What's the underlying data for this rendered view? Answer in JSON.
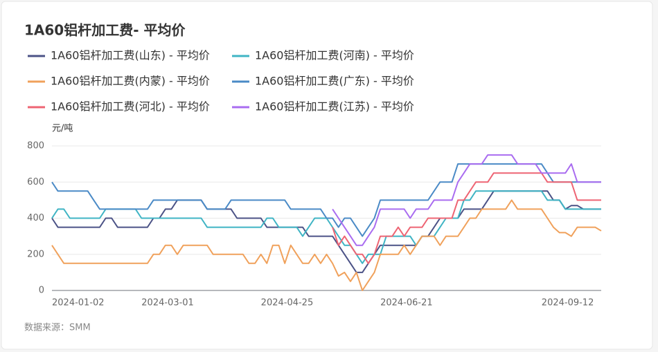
{
  "chart_data": {
    "type": "line",
    "title": "1A60铝杆加工费- 平均价",
    "y_axis_label": "元/吨",
    "source": "数据来源：SMM",
    "categories": [
      "2024-01-02",
      null,
      null,
      null,
      null,
      null,
      null,
      null,
      null,
      null,
      null,
      null,
      null,
      null,
      null,
      "2024-03-01",
      null,
      null,
      null,
      null,
      null,
      null,
      null,
      null,
      null,
      null,
      null,
      null,
      null,
      null,
      null,
      null,
      null,
      null,
      null,
      "2024-04-25",
      null,
      null,
      null,
      null,
      null,
      null,
      null,
      null,
      null,
      null,
      null,
      null,
      null,
      null,
      null,
      null,
      null,
      null,
      null,
      "2024-06-21",
      null,
      null,
      null,
      null,
      null,
      null,
      null,
      null,
      null,
      null,
      null,
      null,
      null,
      null,
      null,
      null,
      null,
      null,
      null,
      null,
      null,
      null,
      null,
      null,
      null,
      null,
      "2024-09-12",
      null,
      null,
      null,
      null,
      null,
      null,
      null,
      null,
      null,
      null
    ],
    "ylim": [
      0,
      800
    ],
    "yticks": [
      0,
      200,
      400,
      600,
      800
    ],
    "grid": true,
    "series": [
      {
        "name": "1A60铝杆加工费(山东) - 平均价",
        "color": "#4b5286",
        "values": [
          400,
          350,
          350,
          350,
          350,
          350,
          350,
          350,
          350,
          400,
          400,
          350,
          350,
          350,
          350,
          350,
          350,
          400,
          400,
          450,
          450,
          500,
          500,
          500,
          500,
          500,
          450,
          450,
          450,
          450,
          450,
          400,
          400,
          400,
          400,
          400,
          350,
          350,
          350,
          350,
          350,
          350,
          350,
          300,
          300,
          300,
          300,
          300,
          250,
          200,
          150,
          100,
          100,
          150,
          200,
          250,
          250,
          250,
          250,
          250,
          250,
          250,
          300,
          300,
          350,
          400,
          400,
          400,
          400,
          450,
          450,
          450,
          450,
          500,
          550,
          550,
          550,
          550,
          550,
          550,
          550,
          550,
          550,
          550,
          500,
          500,
          450,
          470,
          470,
          450,
          450,
          450,
          450
        ]
      },
      {
        "name": "1A60铝杆加工费(河南) - 平均价",
        "color": "#3fb4c4",
        "values": [
          400,
          450,
          450,
          400,
          400,
          400,
          400,
          400,
          400,
          450,
          450,
          450,
          450,
          450,
          450,
          400,
          400,
          400,
          400,
          400,
          400,
          400,
          400,
          400,
          400,
          400,
          350,
          350,
          350,
          350,
          350,
          350,
          350,
          350,
          350,
          350,
          400,
          400,
          350,
          350,
          350,
          350,
          300,
          350,
          400,
          400,
          400,
          350,
          300,
          250,
          250,
          200,
          150,
          200,
          200,
          200,
          300,
          300,
          300,
          300,
          300,
          250,
          300,
          300,
          300,
          350,
          400,
          400,
          400,
          500,
          500,
          550,
          550,
          550,
          550,
          550,
          550,
          550,
          550,
          550,
          550,
          550,
          550,
          500,
          500,
          500,
          450,
          450,
          450,
          450,
          450,
          450,
          450
        ]
      },
      {
        "name": "1A60铝杆加工费(内蒙) - 平均价",
        "color": "#f0a15b",
        "values": [
          250,
          200,
          150,
          150,
          150,
          150,
          150,
          150,
          150,
          150,
          150,
          150,
          150,
          150,
          150,
          150,
          150,
          200,
          200,
          250,
          250,
          200,
          250,
          250,
          250,
          250,
          250,
          200,
          200,
          200,
          200,
          200,
          200,
          150,
          150,
          200,
          150,
          250,
          250,
          150,
          250,
          200,
          150,
          150,
          200,
          150,
          200,
          150,
          80,
          100,
          50,
          100,
          0,
          50,
          100,
          200,
          200,
          200,
          200,
          250,
          200,
          250,
          300,
          300,
          300,
          250,
          300,
          300,
          300,
          350,
          400,
          400,
          450,
          450,
          450,
          450,
          450,
          500,
          450,
          450,
          450,
          450,
          450,
          400,
          350,
          320,
          320,
          300,
          350,
          350,
          350,
          350,
          330
        ]
      },
      {
        "name": "1A60铝杆加工费(广东) - 平均价",
        "color": "#4a8ac6",
        "values": [
          600,
          550,
          550,
          550,
          550,
          550,
          550,
          500,
          450,
          450,
          450,
          450,
          450,
          450,
          450,
          450,
          450,
          500,
          500,
          500,
          500,
          500,
          500,
          500,
          500,
          500,
          450,
          450,
          450,
          450,
          500,
          500,
          500,
          500,
          500,
          500,
          500,
          500,
          500,
          500,
          450,
          450,
          450,
          450,
          450,
          450,
          400,
          400,
          350,
          400,
          400,
          350,
          300,
          350,
          400,
          500,
          500,
          500,
          500,
          500,
          500,
          500,
          500,
          500,
          550,
          600,
          600,
          600,
          700,
          700,
          700,
          700,
          700,
          700,
          700,
          700,
          700,
          700,
          700,
          700,
          700,
          700,
          700,
          650,
          600,
          600,
          600,
          600,
          600,
          600,
          600,
          600,
          600
        ]
      },
      {
        "name": "1A60铝杆加工费(河北) - 平均价",
        "color": "#ee6473",
        "values": [
          null,
          null,
          null,
          null,
          null,
          null,
          null,
          null,
          null,
          null,
          null,
          null,
          null,
          null,
          null,
          null,
          null,
          null,
          null,
          null,
          null,
          null,
          null,
          null,
          null,
          null,
          null,
          null,
          null,
          null,
          null,
          null,
          null,
          null,
          null,
          null,
          null,
          null,
          null,
          null,
          null,
          null,
          null,
          null,
          null,
          null,
          null,
          350,
          250,
          300,
          250,
          200,
          200,
          150,
          200,
          300,
          300,
          300,
          350,
          300,
          350,
          350,
          350,
          400,
          400,
          400,
          400,
          400,
          500,
          500,
          550,
          600,
          600,
          600,
          650,
          650,
          650,
          650,
          650,
          650,
          650,
          650,
          650,
          600,
          600,
          600,
          600,
          600,
          500,
          500,
          500,
          500,
          500
        ]
      },
      {
        "name": "1A60铝杆加工费(江苏) - 平均价",
        "color": "#a96cf0",
        "values": [
          null,
          null,
          null,
          null,
          null,
          null,
          null,
          null,
          null,
          null,
          null,
          null,
          null,
          null,
          null,
          null,
          null,
          null,
          null,
          null,
          null,
          null,
          null,
          null,
          null,
          null,
          null,
          null,
          null,
          null,
          null,
          null,
          null,
          null,
          null,
          null,
          null,
          null,
          null,
          null,
          null,
          null,
          null,
          null,
          null,
          null,
          null,
          450,
          400,
          350,
          300,
          250,
          250,
          300,
          350,
          450,
          450,
          450,
          450,
          450,
          400,
          450,
          450,
          450,
          500,
          500,
          500,
          500,
          600,
          650,
          700,
          700,
          700,
          750,
          750,
          750,
          750,
          750,
          700,
          700,
          700,
          700,
          650,
          650,
          650,
          650,
          650,
          700,
          600,
          600,
          600,
          600,
          600
        ]
      }
    ]
  }
}
